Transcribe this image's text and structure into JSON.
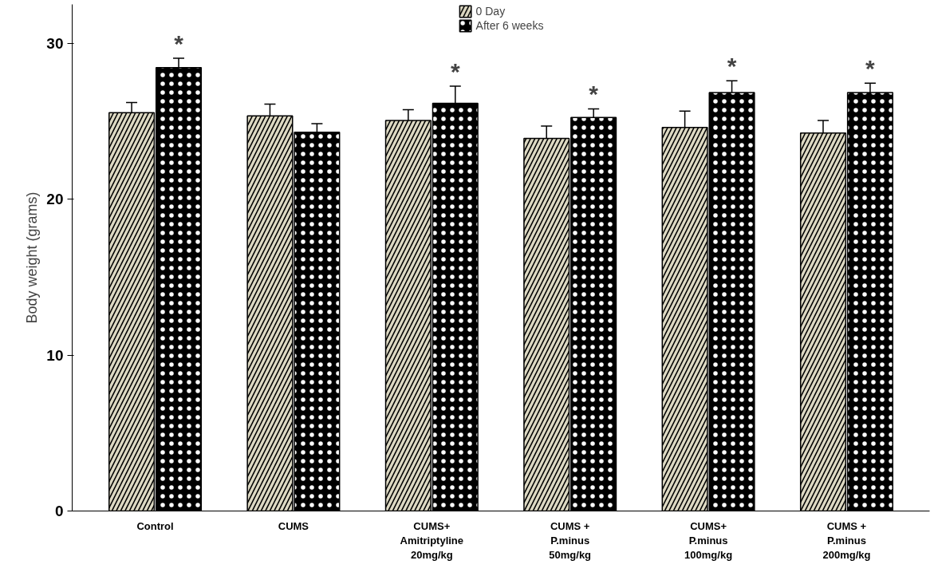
{
  "chart_data": {
    "type": "bar",
    "ylabel": "Body weight (grams)",
    "categories": [
      "Control",
      "CUMS",
      "CUMS+\nAmitriptyline\n20mg/kg",
      "CUMS +\nP.minus\n50mg/kg",
      "CUMS+\nP.minus\n100mg/kg",
      "CUMS +\nP.minus\n200mg/kg"
    ],
    "series": [
      {
        "name": "0 Day",
        "color": "#ddd9c3",
        "values": [
          25.55,
          25.35,
          25.05,
          23.9,
          24.6,
          24.25
        ],
        "errors": [
          0.65,
          0.75,
          0.7,
          0.8,
          1.05,
          0.8
        ]
      },
      {
        "name": "After 6 weeks",
        "color": "#000000",
        "values": [
          28.45,
          24.3,
          26.15,
          25.25,
          26.85,
          26.85
        ],
        "errors": [
          0.6,
          0.55,
          1.1,
          0.55,
          0.75,
          0.6
        ]
      }
    ],
    "annotations": [
      {
        "text": "*",
        "x": "Control",
        "y": 28.45
      },
      {
        "text": "*",
        "x": "CUMS+\nAmitriptyline\n20mg/kg",
        "y": 26.15
      },
      {
        "text": "*",
        "x": "CUMS +\nP.minus\n50mg/kg",
        "y": 25.25
      },
      {
        "text": "*",
        "x": "CUMS+\nP.minus\n100mg/kg",
        "y": 26.85
      },
      {
        "text": "*",
        "x": "CUMS +\nP.minus\n200mg/kg",
        "y": 26.85
      }
    ],
    "ylim": [
      0,
      32.5
    ],
    "yticks": [
      0,
      10,
      20,
      30
    ],
    "legend": "top",
    "grid": false
  }
}
